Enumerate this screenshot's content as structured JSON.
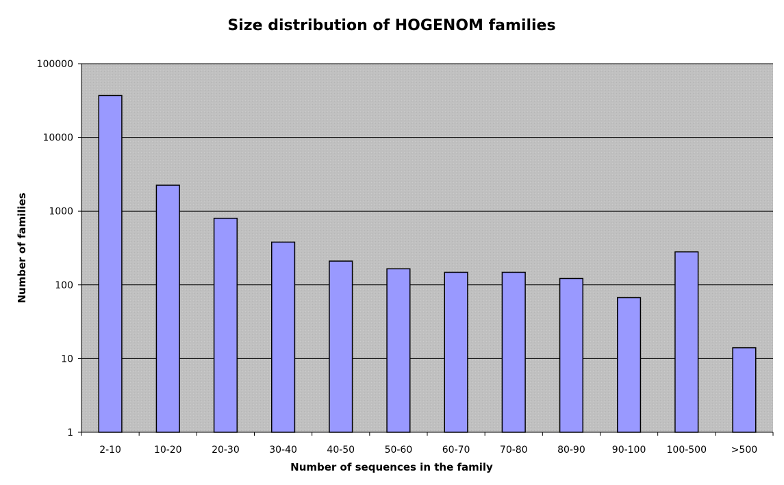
{
  "chart_data": {
    "type": "bar",
    "title": "Size distribution of HOGENOM families",
    "xlabel": "Number of sequences in the family",
    "ylabel": "Number of families",
    "yscale": "log",
    "ylim": [
      1,
      100000
    ],
    "yticks": [
      "1",
      "10",
      "100",
      "1000",
      "10000",
      "100000"
    ],
    "ytick_values": [
      1,
      10,
      100,
      1000,
      10000,
      100000
    ],
    "categories": [
      "2-10",
      "10-20",
      "20-30",
      "30-40",
      "40-50",
      "50-60",
      "60-70",
      "70-80",
      "80-90",
      "90-100",
      "100-500",
      ">500"
    ],
    "values": [
      37000,
      2250,
      800,
      380,
      210,
      165,
      148,
      148,
      122,
      67,
      280,
      14
    ],
    "grid": true,
    "legend": "none",
    "colors": {
      "bar_fill": "#9999ff",
      "bar_stroke": "#000000",
      "plot_background": "#c0c0c0",
      "gridline": "#000000"
    }
  }
}
